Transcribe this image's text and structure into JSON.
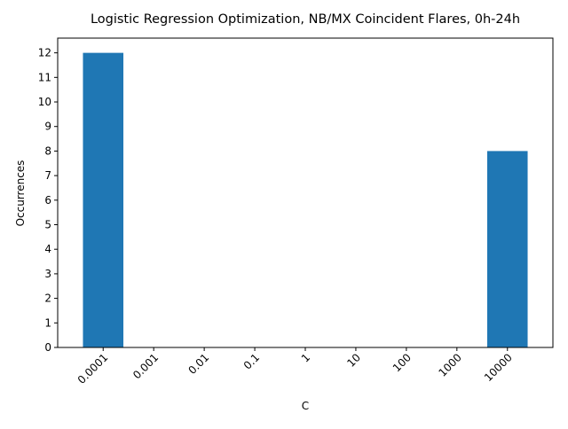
{
  "chart_data": {
    "type": "bar",
    "title": "Logistic Regression Optimization, NB/MX Coincident Flares, 0h-24h",
    "xlabel": "C",
    "ylabel": "Occurrences",
    "categories": [
      "0.0001",
      "0.001",
      "0.01",
      "0.1",
      "1",
      "10",
      "100",
      "1000",
      "10000"
    ],
    "values": [
      12,
      0,
      0,
      0,
      0,
      0,
      0,
      0,
      8
    ],
    "ylim": [
      0,
      12.6
    ],
    "yticks": [
      "0",
      "1",
      "2",
      "3",
      "4",
      "5",
      "6",
      "7",
      "8",
      "9",
      "10",
      "11",
      "12"
    ],
    "grid": false,
    "bar_color": "#1f77b4"
  }
}
